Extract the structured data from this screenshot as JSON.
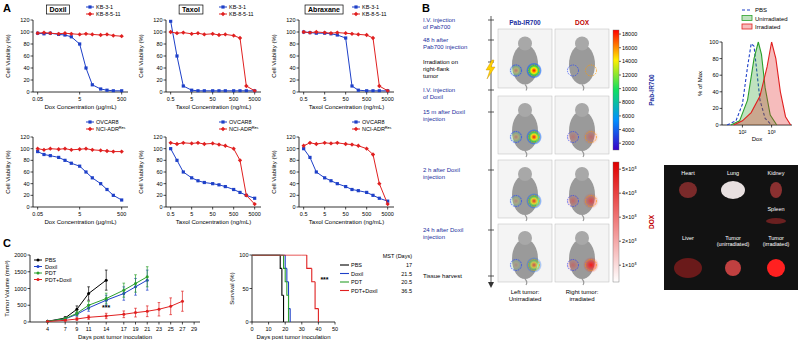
{
  "figure": {
    "panel_labels": [
      "A",
      "B",
      "C"
    ]
  },
  "chart_data": [
    {
      "type": "line",
      "title": "Doxil",
      "x_label": "Dox Concentration (μg/mL)",
      "y_label": "Cell Viability (%)",
      "log": "x",
      "legend": "top-right",
      "x": [
        0.05,
        0.1,
        0.2,
        0.5,
        1,
        2,
        5,
        10,
        20,
        50,
        100,
        200,
        500
      ],
      "xlim": [
        0.03,
        1000
      ],
      "xticks": [
        0.05,
        5,
        500
      ],
      "ylim": [
        0,
        120
      ],
      "yticks": [
        0,
        20,
        40,
        60,
        80,
        100,
        120
      ],
      "series": [
        {
          "name": "KB-3-1",
          "color": "#1e40c8",
          "marker": "square",
          "values": [
            98,
            97,
            98,
            96,
            95,
            92,
            80,
            40,
            12,
            5,
            3,
            2,
            2
          ]
        },
        {
          "name": "KB-8-5-11",
          "color": "#e02020",
          "marker": "diamond",
          "values": [
            98,
            99,
            98,
            97,
            98,
            97,
            96,
            97,
            96,
            95,
            96,
            94,
            93
          ]
        }
      ]
    },
    {
      "type": "line",
      "title": "Taxol",
      "x_label": "Taxol Concentration (ng/mL)",
      "y_label": "Cell Viability (%)",
      "log": "x",
      "legend": "top-right",
      "x": [
        0.5,
        1,
        2,
        5,
        10,
        20,
        50,
        100,
        200,
        500,
        1000,
        2000,
        5000
      ],
      "xlim": [
        0.3,
        10000
      ],
      "xticks": [
        0.5,
        5,
        50,
        500,
        5000
      ],
      "ylim": [
        0,
        120
      ],
      "yticks": [
        0,
        20,
        40,
        60,
        80,
        100,
        120
      ],
      "series": [
        {
          "name": "KB-3-1",
          "color": "#1e40c8",
          "marker": "square",
          "values": [
            118,
            60,
            10,
            3,
            2,
            2,
            2,
            2,
            2,
            2,
            2,
            2,
            2
          ]
        },
        {
          "name": "KB-8-5-11",
          "color": "#e02020",
          "marker": "diamond",
          "values": [
            100,
            98,
            99,
            97,
            98,
            96,
            97,
            95,
            96,
            94,
            90,
            10,
            2
          ]
        }
      ]
    },
    {
      "type": "line",
      "title": "Abraxane",
      "x_label": "Taxol Concentration (ng/mL)",
      "y_label": "Cell Viability (%)",
      "log": "x",
      "legend": "top-right",
      "x": [
        0.5,
        1,
        2,
        5,
        10,
        20,
        50,
        100,
        200,
        500,
        1000,
        2000,
        5000
      ],
      "xlim": [
        0.3,
        10000
      ],
      "xticks": [
        0.5,
        5,
        50,
        500,
        5000
      ],
      "ylim": [
        0,
        120
      ],
      "yticks": [
        0,
        20,
        40,
        60,
        80,
        100,
        120
      ],
      "series": [
        {
          "name": "KB-3-1",
          "color": "#1e40c8",
          "marker": "square",
          "values": [
            100,
            99,
            98,
            98,
            97,
            95,
            90,
            10,
            3,
            2,
            2,
            2,
            2
          ]
        },
        {
          "name": "KB-8-5-11",
          "color": "#e02020",
          "marker": "diamond",
          "values": [
            100,
            99,
            100,
            99,
            98,
            99,
            98,
            97,
            96,
            95,
            90,
            10,
            2
          ]
        }
      ]
    },
    {
      "type": "line",
      "x_label": "Dox Concentration (μg/mL)",
      "y_label": "Cell Viability (%)",
      "log": "x",
      "legend": "top-right",
      "x": [
        0.05,
        0.1,
        0.2,
        0.5,
        1,
        2,
        5,
        10,
        20,
        50,
        100,
        200,
        500
      ],
      "xlim": [
        0.03,
        1000
      ],
      "xticks": [
        0.05,
        5,
        500
      ],
      "ylim": [
        0,
        120
      ],
      "yticks": [
        0,
        20,
        40,
        60,
        80,
        100,
        120
      ],
      "series": [
        {
          "name": "OVCAR8",
          "color": "#1e40c8",
          "marker": "square",
          "values": [
            95,
            90,
            88,
            85,
            80,
            75,
            70,
            60,
            50,
            40,
            30,
            20,
            12
          ]
        },
        {
          "name": "NCI-ADRᴿᵉˢ",
          "color": "#e02020",
          "marker": "diamond",
          "values": [
            100,
            98,
            100,
            99,
            100,
            98,
            99,
            100,
            98,
            97,
            96,
            95,
            95
          ]
        }
      ]
    },
    {
      "type": "line",
      "x_label": "Taxol Concentration (ng/mL)",
      "y_label": "Cell Viability (%)",
      "log": "x",
      "legend": "top-right",
      "x": [
        0.5,
        1,
        2,
        5,
        10,
        20,
        50,
        100,
        200,
        500,
        1000,
        2000,
        5000
      ],
      "xlim": [
        0.3,
        10000
      ],
      "xticks": [
        0.5,
        5,
        50,
        500,
        5000
      ],
      "ylim": [
        0,
        120
      ],
      "yticks": [
        0,
        20,
        40,
        60,
        80,
        100,
        120
      ],
      "series": [
        {
          "name": "OVCAR8",
          "color": "#1e40c8",
          "marker": "square",
          "values": [
            100,
            80,
            60,
            50,
            45,
            42,
            40,
            38,
            35,
            30,
            25,
            20,
            15
          ]
        },
        {
          "name": "NCI-ADRᴿᵉˢ",
          "color": "#e02020",
          "marker": "diamond",
          "values": [
            110,
            108,
            110,
            109,
            110,
            108,
            109,
            107,
            105,
            100,
            80,
            20,
            5
          ]
        }
      ]
    },
    {
      "type": "line",
      "x_label": "Taxol Concentration (ng/mL)",
      "y_label": "Cell Viability (%)",
      "log": "x",
      "legend": "top-right",
      "x": [
        0.5,
        1,
        2,
        5,
        10,
        20,
        50,
        100,
        200,
        500,
        1000,
        2000,
        5000
      ],
      "xlim": [
        0.3,
        10000
      ],
      "xticks": [
        0.5,
        5,
        50,
        500,
        5000
      ],
      "ylim": [
        0,
        120
      ],
      "yticks": [
        0,
        20,
        40,
        60,
        80,
        100,
        120
      ],
      "series": [
        {
          "name": "OVCAR8",
          "color": "#1e40c8",
          "marker": "square",
          "values": [
            100,
            85,
            60,
            50,
            45,
            40,
            35,
            30,
            28,
            25,
            20,
            15,
            10
          ]
        },
        {
          "name": "NCI-ADRᴿᵉˢ",
          "color": "#e02020",
          "marker": "diamond",
          "values": [
            105,
            110,
            108,
            110,
            109,
            110,
            108,
            107,
            105,
            100,
            90,
            40,
            5
          ]
        }
      ]
    },
    {
      "type": "area",
      "x_label": "Dox",
      "y_label": "% of Max",
      "log": "x",
      "legend": "top",
      "xlim": [
        20,
        5000
      ],
      "xticks": [
        {
          "value": 100,
          "label": "10²"
        },
        {
          "value": 1000,
          "label": "10³"
        }
      ],
      "ylim": [
        0,
        100
      ],
      "yticks": [
        0,
        20,
        40,
        60,
        80,
        100
      ],
      "series": [
        {
          "name": "PBS",
          "color": "#1e40c8",
          "line_style": "dashed",
          "x": [
            30,
            60,
            100,
            150,
            200,
            250,
            300,
            400,
            600,
            1000
          ],
          "values": [
            0,
            5,
            25,
            70,
            98,
            95,
            70,
            30,
            8,
            0
          ]
        },
        {
          "name": "Unirradiated",
          "color": "#2ca02c",
          "x": [
            40,
            80,
            150,
            250,
            350,
            450,
            600,
            900,
            1500
          ],
          "values": [
            0,
            5,
            30,
            80,
            100,
            85,
            45,
            12,
            0
          ]
        },
        {
          "name": "Irradiated",
          "color": "#e02020",
          "x": [
            50,
            100,
            200,
            400,
            700,
            1000,
            1400,
            2000,
            3000,
            4500
          ],
          "values": [
            0,
            5,
            15,
            35,
            70,
            100,
            80,
            40,
            10,
            0
          ]
        }
      ]
    },
    {
      "type": "line",
      "x_label": "Days post tumor inoculation",
      "y_label": "Tumor Volume (mm³)",
      "legend": "top-left",
      "xlim": [
        1,
        30
      ],
      "xticks": [
        4,
        7,
        9,
        11,
        14,
        17,
        19,
        21,
        23,
        25,
        27,
        29
      ],
      "ylim": [
        0,
        2000
      ],
      "yticks": [
        0,
        500,
        1000,
        1500,
        2000
      ],
      "annotations": [
        "***"
      ],
      "series": [
        {
          "name": "PBS",
          "color": "#000000",
          "marker": "circle",
          "x": [
            4,
            7,
            9,
            11,
            14
          ],
          "values": [
            20,
            120,
            380,
            850,
            1250
          ],
          "errors": [
            10,
            40,
            100,
            200,
            300
          ]
        },
        {
          "name": "Doxil",
          "color": "#1e40c8",
          "marker": "circle",
          "x": [
            4,
            7,
            9,
            11,
            14,
            17,
            19,
            21
          ],
          "values": [
            20,
            90,
            230,
            420,
            650,
            850,
            1050,
            1250
          ],
          "errors": [
            10,
            30,
            60,
            100,
            150,
            200,
            250,
            300
          ]
        },
        {
          "name": "PDT",
          "color": "#2ca02c",
          "marker": "circle",
          "x": [
            4,
            7,
            9,
            11,
            14,
            17,
            19,
            21
          ],
          "values": [
            20,
            100,
            260,
            500,
            700,
            950,
            1150,
            1350
          ],
          "errors": [
            10,
            30,
            70,
            110,
            160,
            210,
            260,
            300
          ]
        },
        {
          "name": "PDT+Doxil",
          "color": "#e02020",
          "marker": "circle",
          "x": [
            4,
            7,
            9,
            11,
            14,
            17,
            19,
            21,
            23,
            25,
            27
          ],
          "values": [
            15,
            50,
            90,
            140,
            180,
            230,
            280,
            320,
            380,
            470,
            620
          ],
          "errors": [
            5,
            20,
            40,
            60,
            80,
            100,
            130,
            160,
            200,
            250,
            300
          ]
        }
      ]
    },
    {
      "type": "step",
      "x_label": "Days post tumor inoculation",
      "y_label": "Survival (%)",
      "legend": "right",
      "xlim": [
        0,
        50
      ],
      "xticks": [
        0,
        10,
        20,
        30,
        40,
        50
      ],
      "ylim": [
        0,
        100
      ],
      "yticks": [
        0,
        50,
        100
      ],
      "annotations": [
        "***"
      ],
      "table": {
        "header": "MST (Days)",
        "values": [
          17,
          21.5,
          20.5,
          36.5
        ]
      },
      "series": [
        {
          "name": "PBS",
          "color": "#000000",
          "x": [
            0,
            16,
            17,
            18,
            19
          ],
          "values": [
            100,
            100,
            80,
            40,
            0
          ]
        },
        {
          "name": "Doxil",
          "color": "#1e40c8",
          "x": [
            0,
            19,
            20,
            21,
            22,
            23
          ],
          "values": [
            100,
            100,
            80,
            60,
            20,
            0
          ]
        },
        {
          "name": "PDT",
          "color": "#2ca02c",
          "x": [
            0,
            18,
            19,
            20,
            21,
            22
          ],
          "values": [
            100,
            100,
            80,
            60,
            40,
            0
          ]
        },
        {
          "name": "PDT+Doxil",
          "color": "#e02020",
          "x": [
            0,
            30,
            33,
            36,
            38,
            40
          ],
          "values": [
            100,
            100,
            80,
            60,
            20,
            0
          ]
        }
      ]
    }
  ],
  "diagram": {
    "timeline": [
      "I.V. injection of Pab700",
      "48 h after Pab700 injection",
      "Irradiation on right-flank tumor",
      "I.V. injection of Doxil",
      "15 m after Doxil injection",
      "2 h after Doxil injection",
      "24 h after Doxil injection",
      "Tissue harvest"
    ],
    "columns": [
      "Pab-IR700",
      "DOX"
    ],
    "image_captions": [
      "Left tumor: Unirradiated",
      "Right tumor: irradiated"
    ],
    "colorbars": [
      {
        "label": "Pab-IR700",
        "range": [
          1000,
          18600
        ],
        "ticks": [
          2000,
          4000,
          6000,
          8000,
          10000,
          12000,
          14000,
          16000,
          18000
        ]
      },
      {
        "label": "DOX",
        "range": [
          30000,
          530000
        ],
        "ticks": [
          {
            "value": 100000,
            "label": "1×10⁵"
          },
          {
            "value": 200000,
            "label": "2×10⁵"
          },
          {
            "value": 300000,
            "label": "3×10⁵"
          },
          {
            "value": 400000,
            "label": "4×10⁵"
          },
          {
            "value": 500000,
            "label": "5×10⁵"
          }
        ]
      }
    ],
    "tissues": [
      "Heart",
      "Lung",
      "Kidney",
      "Spleen",
      "Liver",
      "Tumor (unirradiated)",
      "Tumor (irradiated)"
    ]
  }
}
